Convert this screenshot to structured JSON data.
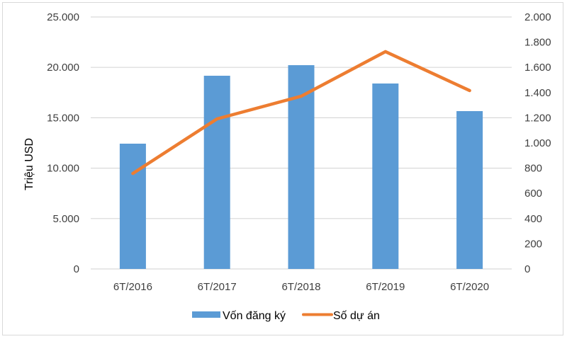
{
  "chart_data": {
    "type": "bar+line",
    "title": "",
    "categories": [
      "6T/2016",
      "6T/2017",
      "6T/2018",
      "6T/2019",
      "6T/2020"
    ],
    "series": [
      {
        "name": "Vốn đăng ký",
        "type": "bar",
        "axis": "left",
        "color": "#5B9BD5",
        "values": [
          12430,
          19170,
          20220,
          18400,
          15660
        ]
      },
      {
        "name": "Số dự án",
        "type": "line",
        "axis": "right",
        "color": "#ED7D31",
        "values": [
          758,
          1191,
          1371,
          1725,
          1416
        ]
      }
    ],
    "xlabel": "",
    "ylabel": "Triệu USD",
    "ylabel_right": "",
    "ylim": [
      0,
      25000
    ],
    "ylim_right": [
      0,
      2000
    ],
    "yticks": [
      "0",
      "5.000",
      "10.000",
      "15.000",
      "20.000",
      "25.000"
    ],
    "yticks_values": [
      0,
      5000,
      10000,
      15000,
      20000,
      25000
    ],
    "yticks_right": [
      "0",
      "200",
      "400",
      "600",
      "800",
      "1.000",
      "1.200",
      "1.400",
      "1.600",
      "1.800",
      "2.000"
    ],
    "yticks_right_values": [
      0,
      200,
      400,
      600,
      800,
      1000,
      1200,
      1400,
      1600,
      1800,
      2000
    ],
    "grid": true,
    "legend_position": "bottom"
  },
  "legend": {
    "bar_label": "Vốn đăng ký",
    "line_label": "Số dự án"
  },
  "axis": {
    "ylabel": "Triệu USD"
  }
}
